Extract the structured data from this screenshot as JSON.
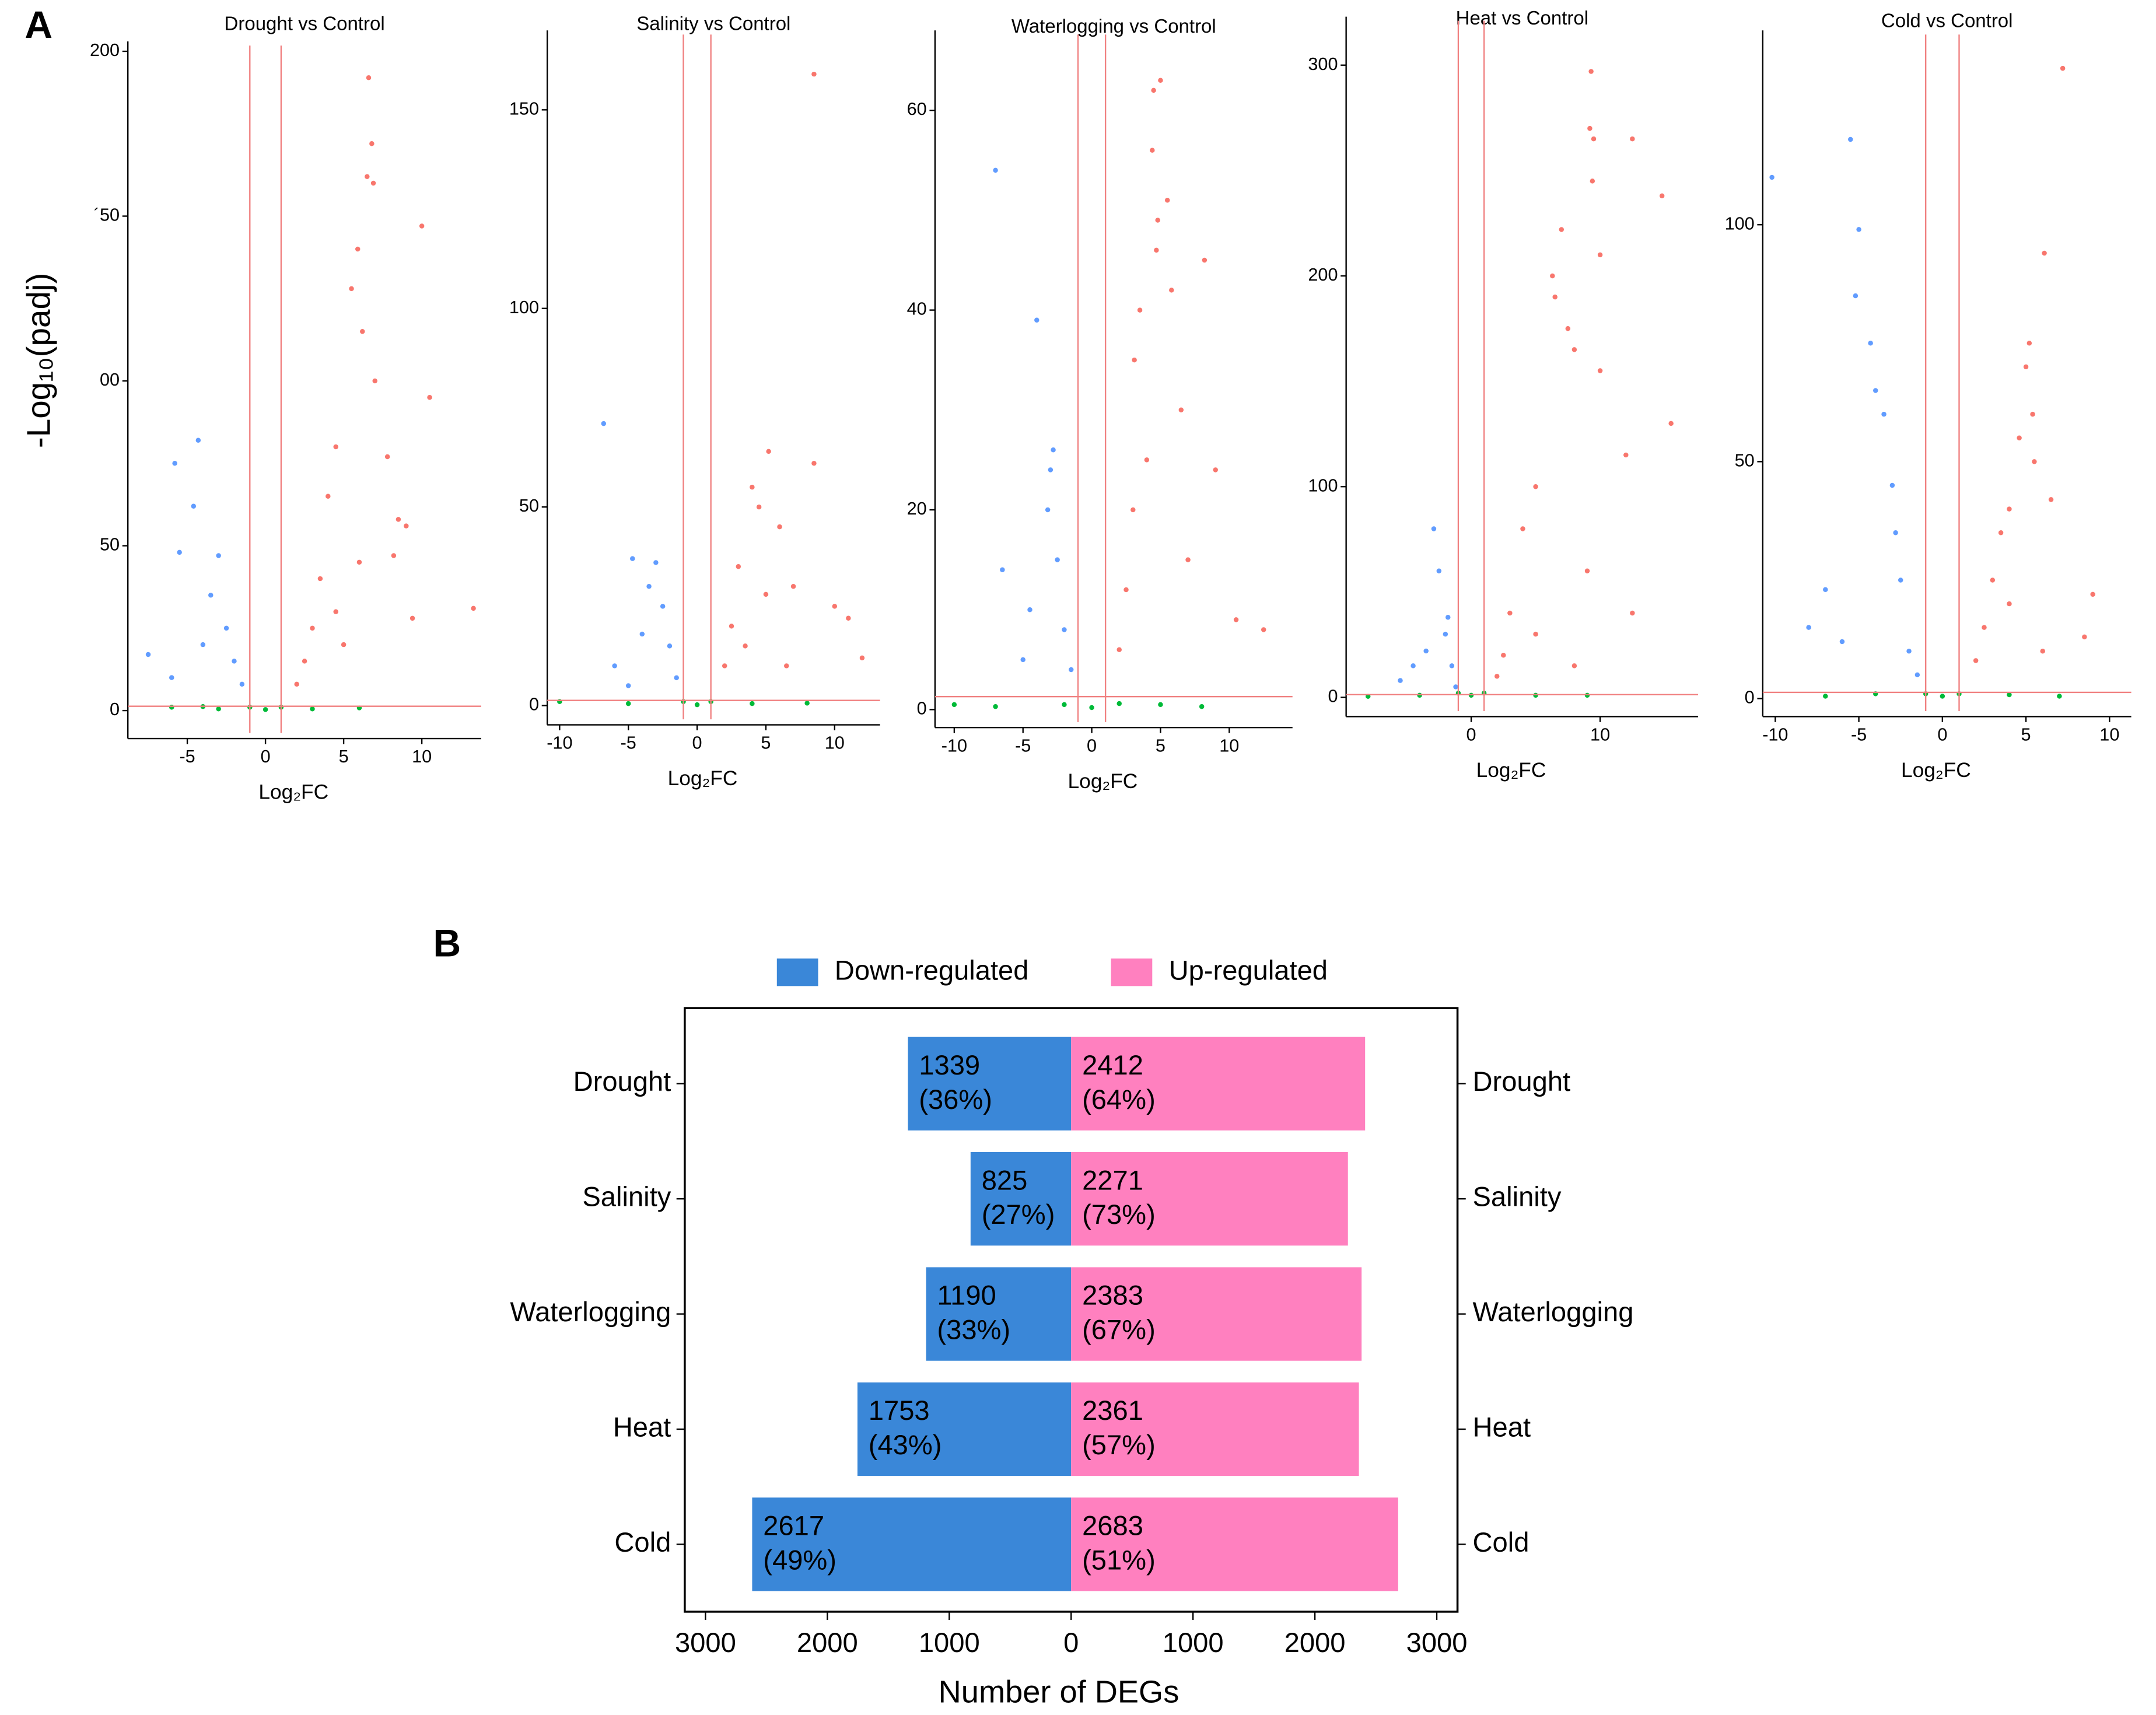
{
  "labels": [
    "A",
    "B"
  ],
  "chart_data": [
    {
      "type": "scatter",
      "title": "Drought vs Control",
      "xlabel": "Log₂FC",
      "ylabel": "-Log₁₀(padj)",
      "xlim": [
        -8.8,
        13.8
      ],
      "ylim": [
        -8.5,
        203
      ],
      "xticks": [
        -5,
        0,
        5,
        10
      ],
      "yticks": [
        0,
        50,
        {
          "value": 100,
          "label": "00"
        },
        {
          "value": 150,
          "label": "´50"
        },
        200
      ],
      "vlines": [
        -1,
        1
      ],
      "hline": 1.3,
      "line_color": "#f08080",
      "series": [
        {
          "color": "#00ba38",
          "x": [
            -6,
            -3,
            -1,
            0,
            1,
            3,
            6,
            -4
          ],
          "y": [
            1,
            0.5,
            1,
            0.3,
            1,
            0.5,
            0.8,
            1.2
          ]
        },
        {
          "color": "#619cff",
          "x": [
            -5.8,
            -4.3,
            -4.6,
            -5.5,
            -3,
            -3.5,
            -2.5,
            -2,
            -1.5,
            -7.5,
            -6,
            -4
          ],
          "y": [
            75,
            82,
            62,
            48,
            47,
            35,
            25,
            15,
            8,
            17,
            10,
            20
          ]
        },
        {
          "color": "#f8766d",
          "x": [
            6.6,
            6.8,
            6.5,
            6.9,
            10,
            5.9,
            5.5,
            6.2,
            7,
            10.5,
            4.5,
            7.8,
            4,
            8.5,
            9,
            8.2,
            13.3,
            9.4,
            3.5,
            3,
            2.5,
            2,
            4.5,
            5,
            6
          ],
          "y": [
            192,
            172,
            162,
            160,
            147,
            140,
            128,
            115,
            100,
            95,
            80,
            77,
            65,
            58,
            56,
            47,
            31,
            28,
            40,
            25,
            15,
            8,
            30,
            20,
            45
          ]
        }
      ]
    },
    {
      "type": "scatter",
      "title": "Salinity vs Control",
      "xlabel": "Log₂FC",
      "xlim": [
        -10.9,
        13.3
      ],
      "ylim": [
        -4.85,
        170
      ],
      "xticks": [
        -10,
        -5,
        0,
        5,
        10
      ],
      "yticks": [
        0,
        50,
        100,
        150
      ],
      "vlines": [
        -1,
        1
      ],
      "hline": 1.3,
      "line_color": "#f08080",
      "series": [
        {
          "color": "#00ba38",
          "x": [
            -10,
            -5,
            -1,
            0,
            1,
            4,
            8
          ],
          "y": [
            1,
            0.5,
            1,
            0.2,
            1,
            0.5,
            0.6
          ]
        },
        {
          "color": "#619cff",
          "x": [
            -6.8,
            -4.7,
            -3,
            -3.5,
            -2.5,
            -2,
            -1.5,
            -6,
            -4,
            -5
          ],
          "y": [
            71,
            37,
            36,
            30,
            25,
            15,
            7,
            10,
            18,
            5
          ]
        },
        {
          "color": "#f8766d",
          "x": [
            8.5,
            8.5,
            5.2,
            4,
            4.5,
            6,
            10,
            11,
            12,
            7,
            3,
            2.5,
            2,
            5,
            3.5,
            6.5
          ],
          "y": [
            159,
            61,
            64,
            55,
            50,
            45,
            25,
            22,
            12,
            30,
            35,
            20,
            10,
            28,
            15,
            10
          ]
        }
      ]
    },
    {
      "type": "scatter",
      "title": "Waterlogging vs Control",
      "xlabel": "Log₂FC",
      "xlim": [
        -11.4,
        14.6
      ],
      "ylim": [
        -1.8,
        68
      ],
      "xticks": [
        -10,
        -5,
        0,
        5,
        10
      ],
      "yticks": [
        0,
        20,
        40,
        60
      ],
      "vlines": [
        -1,
        1
      ],
      "hline": 1.3,
      "line_color": "#f08080",
      "series": [
        {
          "color": "#00ba38",
          "x": [
            -10,
            -7,
            -2,
            0,
            2,
            5,
            8
          ],
          "y": [
            0.5,
            0.3,
            0.5,
            0.2,
            0.6,
            0.5,
            0.3
          ]
        },
        {
          "color": "#619cff",
          "x": [
            -7,
            -4,
            -2.8,
            -3,
            -3.2,
            -2.5,
            -6.5,
            -4.5,
            -2,
            -1.5,
            -5
          ],
          "y": [
            54,
            39,
            26,
            24,
            20,
            15,
            14,
            10,
            8,
            4,
            5
          ]
        },
        {
          "color": "#f8766d",
          "x": [
            5,
            4.5,
            4.4,
            5.5,
            4.8,
            4.7,
            8.2,
            3.5,
            5.8,
            3.1,
            6.5,
            9,
            10.5,
            12.5,
            3,
            2.5,
            2,
            4,
            7
          ],
          "y": [
            63,
            62,
            56,
            51,
            49,
            46,
            45,
            40,
            42,
            35,
            30,
            24,
            9,
            8,
            20,
            12,
            6,
            25,
            15
          ]
        }
      ]
    },
    {
      "type": "scatter",
      "title": "Heat vs Control",
      "xlabel": "Log₂FC",
      "xlim": [
        -9.7,
        17.6
      ],
      "ylim": [
        -9.1,
        323
      ],
      "xticks": [
        0,
        10
      ],
      "yticks": [
        0,
        100,
        200,
        300
      ],
      "vlines": [
        -1,
        1
      ],
      "hline": 1.3,
      "line_color": "#f08080",
      "series": [
        {
          "color": "#00ba38",
          "x": [
            -8,
            -4,
            -1,
            0,
            1,
            5,
            9
          ],
          "y": [
            0.5,
            1,
            2,
            1,
            2,
            1,
            1
          ]
        },
        {
          "color": "#619cff",
          "x": [
            -2.9,
            -2.5,
            -1.8,
            -2,
            -1.5,
            -3.5,
            -4.5,
            -5.5,
            -1.2
          ],
          "y": [
            80,
            60,
            38,
            30,
            15,
            22,
            15,
            8,
            5
          ]
        },
        {
          "color": "#f8766d",
          "x": [
            9.3,
            9.2,
            9.5,
            12.5,
            14.8,
            9.4,
            7,
            10,
            6.3,
            6.5,
            7.5,
            8,
            10,
            15.5,
            12,
            5,
            4,
            9,
            12.5,
            3,
            2.5,
            2,
            5,
            8
          ],
          "y": [
            297,
            270,
            265,
            265,
            238,
            245,
            222,
            210,
            200,
            190,
            175,
            165,
            155,
            130,
            115,
            100,
            80,
            60,
            40,
            40,
            20,
            10,
            30,
            15
          ]
        }
      ]
    },
    {
      "type": "scatter",
      "title": "Cold vs Control",
      "xlabel": "Log₂FC",
      "xlim": [
        -10.75,
        11.3
      ],
      "ylim": [
        -3.8,
        141
      ],
      "xticks": [
        -10,
        -5,
        0,
        5,
        10
      ],
      "yticks": [
        0,
        50,
        100
      ],
      "vlines": [
        -1,
        1
      ],
      "hline": 1.3,
      "line_color": "#f08080",
      "series": [
        {
          "color": "#00ba38",
          "x": [
            -7,
            -4,
            -1,
            0,
            1,
            4,
            7
          ],
          "y": [
            0.5,
            1,
            1,
            0.5,
            1,
            0.8,
            0.5
          ]
        },
        {
          "color": "#619cff",
          "x": [
            -10.2,
            -5.5,
            -5,
            -5.2,
            -4.3,
            -4,
            -3.5,
            -3,
            -2.8,
            -2.5,
            -7,
            -8,
            -6,
            -2,
            -1.5
          ],
          "y": [
            110,
            118,
            99,
            85,
            75,
            65,
            60,
            45,
            35,
            25,
            23,
            15,
            12,
            10,
            5
          ]
        },
        {
          "color": "#f8766d",
          "x": [
            7.2,
            6.1,
            5.2,
            5,
            5.4,
            4.6,
            5.5,
            6.5,
            4,
            3.5,
            9,
            8.5,
            3,
            2.5,
            2,
            4,
            6
          ],
          "y": [
            133,
            94,
            75,
            70,
            60,
            55,
            50,
            42,
            40,
            35,
            22,
            13,
            25,
            15,
            8,
            20,
            10
          ]
        }
      ]
    },
    {
      "type": "diverging_bar",
      "xlabel": "Number of DEGs",
      "categories": [
        "Drought",
        "Salinity",
        "Waterlogging",
        "Heat",
        "Cold"
      ],
      "xlim": [
        -3170,
        3170
      ],
      "xticks": [
        {
          "value": -3000,
          "label": "3000"
        },
        {
          "value": -2000,
          "label": "2000"
        },
        {
          "value": -1000,
          "label": "1000"
        },
        0,
        1000,
        2000,
        3000
      ],
      "series": [
        {
          "name": "Down-regulated",
          "color": "#3a87d8",
          "side": "left",
          "values": [
            1339,
            825,
            1190,
            1753,
            2617
          ],
          "percent_labels": [
            "(36%)",
            "(27%)",
            "(33%)",
            "(43%)",
            "(49%)"
          ]
        },
        {
          "name": "Up-regulated",
          "color": "#ff80bf",
          "side": "right",
          "values": [
            2412,
            2271,
            2383,
            2361,
            2683
          ],
          "percent_labels": [
            "(64%)",
            "(73%)",
            "(67%)",
            "(57%)",
            "(51%)"
          ]
        }
      ]
    }
  ]
}
